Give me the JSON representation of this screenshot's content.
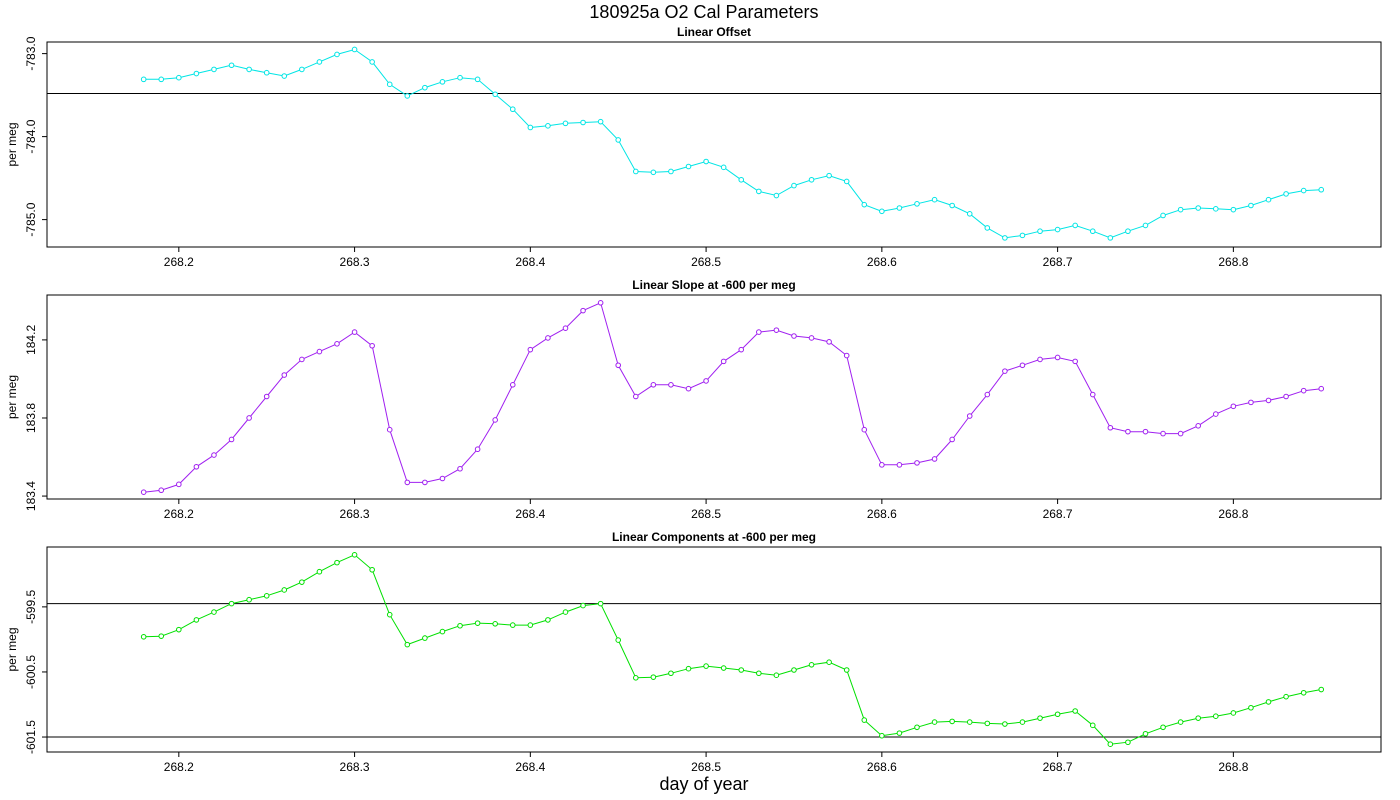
{
  "title": "180925a   O2 Cal Parameters",
  "xlabel": "day of year",
  "chart_data": [
    {
      "type": "line",
      "title": "Linear Offset",
      "ylabel": "per meg",
      "color": "#00e5e5",
      "marker": "circle",
      "xlim": [
        268.125,
        268.884
      ],
      "ylim": [
        -785.33,
        -782.86
      ],
      "xticks": [
        268.2,
        268.3,
        268.4,
        268.5,
        268.6,
        268.7,
        268.8
      ],
      "yticks": [
        {
          "value": -783,
          "label": "-783.0"
        },
        {
          "value": -784,
          "label": "-784.0"
        },
        {
          "value": -785,
          "label": "-785.0"
        }
      ],
      "hlines": [
        -783.48
      ],
      "x": [
        268.18,
        268.19,
        268.2,
        268.21,
        268.22,
        268.23,
        268.24,
        268.25,
        268.26,
        268.27,
        268.28,
        268.29,
        268.3,
        268.31,
        268.32,
        268.33,
        268.34,
        268.35,
        268.36,
        268.37,
        268.38,
        268.39,
        268.4,
        268.41,
        268.42,
        268.43,
        268.44,
        268.45,
        268.46,
        268.47,
        268.48,
        268.49,
        268.5,
        268.51,
        268.52,
        268.53,
        268.54,
        268.55,
        268.56,
        268.57,
        268.58,
        268.59,
        268.6,
        268.61,
        268.62,
        268.63,
        268.64,
        268.65,
        268.66,
        268.67,
        268.68,
        268.69,
        268.7,
        268.71,
        268.72,
        268.73,
        268.74,
        268.75,
        268.76,
        268.77,
        268.78,
        268.79,
        268.8,
        268.81,
        268.82,
        268.83,
        268.84,
        268.85
      ],
      "values": [
        -783.31,
        -783.31,
        -783.29,
        -783.24,
        -783.19,
        -783.14,
        -783.19,
        -783.23,
        -783.27,
        -783.19,
        -783.1,
        -783.01,
        -782.95,
        -783.1,
        -783.37,
        -783.51,
        -783.41,
        -783.34,
        -783.29,
        -783.31,
        -783.49,
        -783.67,
        -783.89,
        -783.87,
        -783.84,
        -783.83,
        -783.82,
        -784.04,
        -784.42,
        -784.43,
        -784.42,
        -784.36,
        -784.3,
        -784.37,
        -784.52,
        -784.66,
        -784.71,
        -784.59,
        -784.52,
        -784.47,
        -784.54,
        -784.82,
        -784.9,
        -784.86,
        -784.81,
        -784.76,
        -784.83,
        -784.93,
        -785.1,
        -785.22,
        -785.19,
        -785.14,
        -785.12,
        -785.07,
        -785.14,
        -785.22,
        -785.14,
        -785.07,
        -784.95,
        -784.88,
        -784.86,
        -784.87,
        -784.88,
        -784.83,
        -784.76,
        -784.69,
        -784.65,
        -784.64
      ]
    },
    {
      "type": "line",
      "title": "Linear Slope at -600 per meg",
      "ylabel": "per meg",
      "color": "#a020f0",
      "marker": "circle",
      "xlim": [
        268.125,
        268.884
      ],
      "ylim": [
        183.385,
        184.43
      ],
      "xticks": [
        268.2,
        268.3,
        268.4,
        268.5,
        268.6,
        268.7,
        268.8
      ],
      "yticks": [
        183.4,
        183.8,
        184.2
      ],
      "x": [
        268.18,
        268.19,
        268.2,
        268.21,
        268.22,
        268.23,
        268.24,
        268.25,
        268.26,
        268.27,
        268.28,
        268.29,
        268.3,
        268.31,
        268.32,
        268.33,
        268.34,
        268.35,
        268.36,
        268.37,
        268.38,
        268.39,
        268.4,
        268.41,
        268.42,
        268.43,
        268.44,
        268.45,
        268.46,
        268.47,
        268.48,
        268.49,
        268.5,
        268.51,
        268.52,
        268.53,
        268.54,
        268.55,
        268.56,
        268.57,
        268.58,
        268.59,
        268.6,
        268.61,
        268.62,
        268.63,
        268.64,
        268.65,
        268.66,
        268.67,
        268.68,
        268.69,
        268.7,
        268.71,
        268.72,
        268.73,
        268.74,
        268.75,
        268.76,
        268.77,
        268.78,
        268.79,
        268.8,
        268.81,
        268.82,
        268.83,
        268.84,
        268.85
      ],
      "values": [
        183.42,
        183.43,
        183.46,
        183.55,
        183.61,
        183.69,
        183.8,
        183.91,
        184.02,
        184.1,
        184.14,
        184.18,
        184.24,
        184.17,
        183.74,
        183.47,
        183.47,
        183.49,
        183.54,
        183.64,
        183.79,
        183.97,
        184.15,
        184.21,
        184.26,
        184.35,
        184.39,
        184.07,
        183.91,
        183.97,
        183.97,
        183.95,
        183.99,
        184.09,
        184.15,
        184.24,
        184.25,
        184.22,
        184.21,
        184.19,
        184.12,
        183.74,
        183.56,
        183.56,
        183.57,
        183.59,
        183.69,
        183.81,
        183.92,
        184.04,
        184.07,
        184.1,
        184.11,
        184.09,
        183.92,
        183.75,
        183.73,
        183.73,
        183.72,
        183.72,
        183.76,
        183.82,
        183.86,
        183.88,
        183.89,
        183.91,
        183.94,
        183.95
      ]
    },
    {
      "type": "line",
      "title": "Linear Components at -600 per meg",
      "ylabel": "per meg",
      "color": "#00e000",
      "marker": "circle",
      "xlim": [
        268.125,
        268.884
      ],
      "ylim": [
        -601.73,
        -598.58
      ],
      "xticks": [
        268.2,
        268.3,
        268.4,
        268.5,
        268.6,
        268.7,
        268.8
      ],
      "yticks": [
        -599.5,
        -600.5,
        -601.5
      ],
      "hlines": [
        -599.45,
        -601.5
      ],
      "x": [
        268.18,
        268.19,
        268.2,
        268.21,
        268.22,
        268.23,
        268.24,
        268.25,
        268.26,
        268.27,
        268.28,
        268.29,
        268.3,
        268.31,
        268.32,
        268.33,
        268.34,
        268.35,
        268.36,
        268.37,
        268.38,
        268.39,
        268.4,
        268.41,
        268.42,
        268.43,
        268.44,
        268.45,
        268.46,
        268.47,
        268.48,
        268.49,
        268.5,
        268.51,
        268.52,
        268.53,
        268.54,
        268.55,
        268.56,
        268.57,
        268.58,
        268.59,
        268.6,
        268.61,
        268.62,
        268.63,
        268.64,
        268.65,
        268.66,
        268.67,
        268.68,
        268.69,
        268.7,
        268.71,
        268.72,
        268.73,
        268.74,
        268.75,
        268.76,
        268.77,
        268.78,
        268.79,
        268.8,
        268.81,
        268.82,
        268.83,
        268.84,
        268.85
      ],
      "values": [
        -599.96,
        -599.95,
        -599.85,
        -599.7,
        -599.58,
        -599.45,
        -599.39,
        -599.33,
        -599.24,
        -599.12,
        -598.96,
        -598.82,
        -598.7,
        -598.93,
        -599.62,
        -600.08,
        -599.98,
        -599.88,
        -599.79,
        -599.75,
        -599.76,
        -599.78,
        -599.78,
        -599.7,
        -599.58,
        -599.48,
        -599.45,
        -600.01,
        -600.59,
        -600.58,
        -600.52,
        -600.45,
        -600.41,
        -600.44,
        -600.47,
        -600.52,
        -600.55,
        -600.47,
        -600.39,
        -600.35,
        -600.47,
        -601.24,
        -601.48,
        -601.44,
        -601.35,
        -601.27,
        -601.26,
        -601.27,
        -601.29,
        -601.3,
        -601.27,
        -601.21,
        -601.15,
        -601.1,
        -601.32,
        -601.61,
        -601.58,
        -601.45,
        -601.35,
        -601.27,
        -601.21,
        -601.18,
        -601.13,
        -601.05,
        -600.96,
        -600.88,
        -600.82,
        -600.77
      ]
    }
  ]
}
